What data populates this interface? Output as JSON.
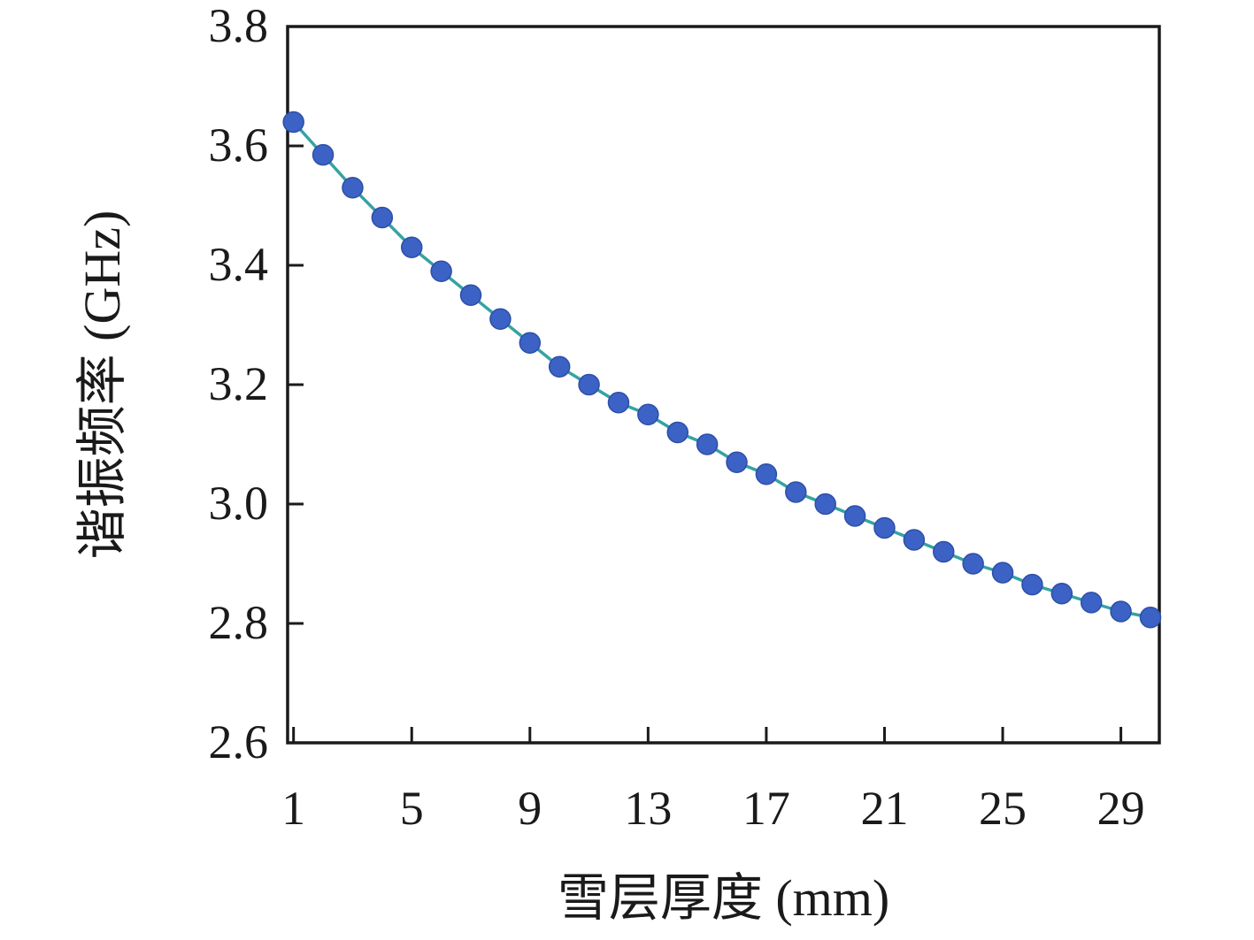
{
  "figure": {
    "background_color": "#ffffff",
    "axis_color": "#1a1a1a",
    "marker_color": "#3b62c4",
    "marker_edge_color": "#2c4fa8",
    "line_color": "#35a3a3"
  },
  "chart_data": {
    "type": "line",
    "title": "",
    "xlabel": "雪层厚度 (mm)",
    "ylabel": "谐振频率 (GHz)",
    "x": [
      1,
      2,
      3,
      4,
      5,
      6,
      7,
      8,
      9,
      10,
      11,
      12,
      13,
      14,
      15,
      16,
      17,
      18,
      19,
      20,
      21,
      22,
      23,
      24,
      25,
      26,
      27,
      28,
      29,
      30
    ],
    "values": [
      3.64,
      3.585,
      3.53,
      3.48,
      3.43,
      3.39,
      3.35,
      3.31,
      3.27,
      3.23,
      3.2,
      3.17,
      3.15,
      3.12,
      3.1,
      3.07,
      3.05,
      3.02,
      3.0,
      2.98,
      2.96,
      2.94,
      2.92,
      2.9,
      2.885,
      2.865,
      2.85,
      2.835,
      2.82,
      2.81
    ],
    "xlim": [
      0.8,
      30.3
    ],
    "ylim": [
      2.6,
      3.8
    ],
    "xticks": [
      1,
      5,
      9,
      13,
      17,
      21,
      25,
      29
    ],
    "xtick_labels": [
      "1",
      "5",
      "9",
      "13",
      "17",
      "21",
      "25",
      "29"
    ],
    "yticks": [
      2.6,
      2.8,
      3.0,
      3.2,
      3.4,
      3.6,
      3.8
    ],
    "ytick_labels": [
      "2.6",
      "2.8",
      "3.0",
      "3.2",
      "3.4",
      "3.6",
      "3.8"
    ],
    "grid": false,
    "legend": null,
    "marker": "circle",
    "frame": "box"
  }
}
